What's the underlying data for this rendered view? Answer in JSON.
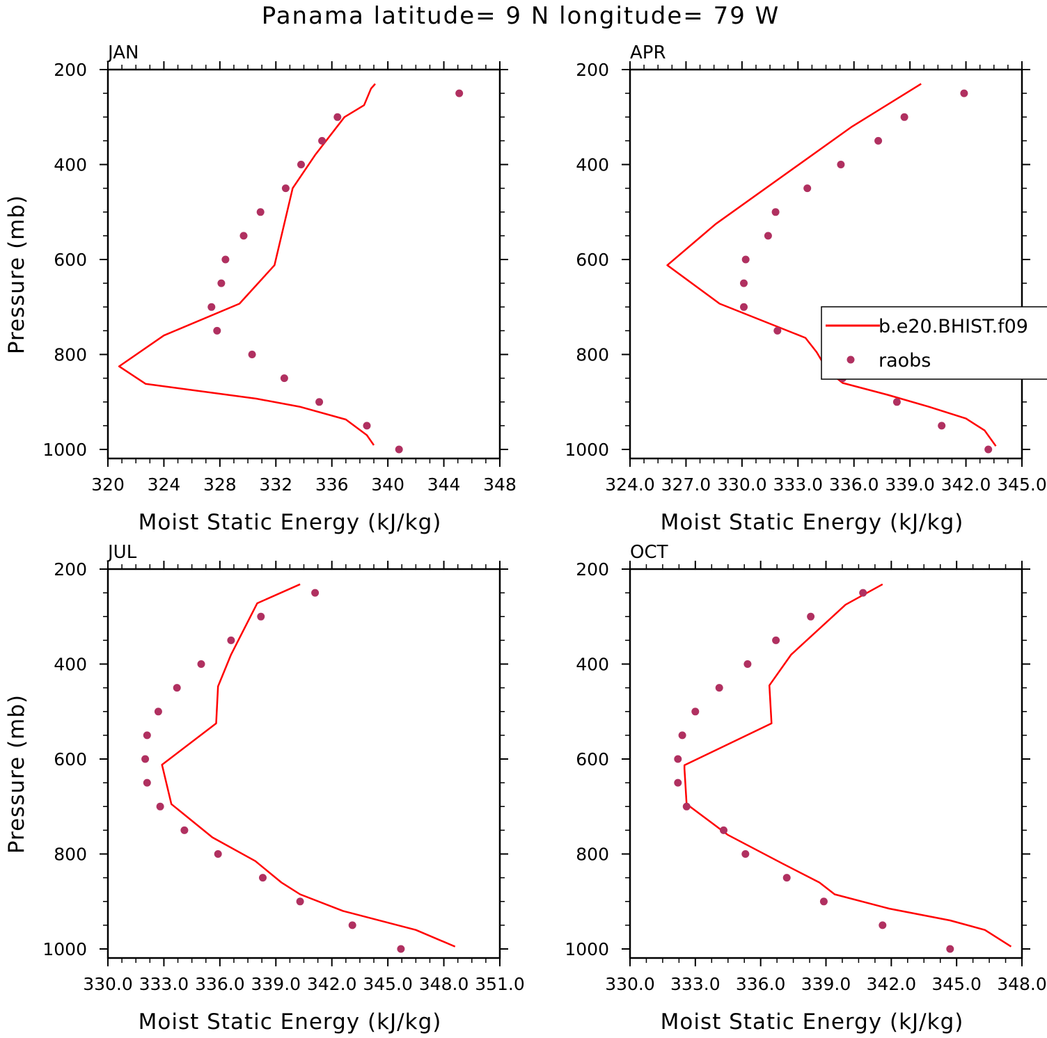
{
  "title": "Panama  latitude= 9 N longitude= 79 W",
  "colors": {
    "model_line": "#ff0000",
    "obs_marker": "#b03060"
  },
  "legend": {
    "model_label": "b.e20.BHIST.f09",
    "obs_label": "raobs"
  },
  "chart_data": [
    {
      "type": "line",
      "panel": "JAN",
      "xlabel": "Moist Static Energy (kJ/kg)",
      "ylabel": "Pressure (mb)",
      "xlim": [
        320,
        348
      ],
      "ylim": [
        1000,
        200
      ],
      "xtick_labels": [
        "320",
        "324",
        "328",
        "332",
        "336",
        "340",
        "344",
        "348"
      ],
      "ytick_labels": [
        "200",
        "400",
        "600",
        "800",
        "1000"
      ],
      "series": [
        {
          "name": "b.e20.BHIST.f09",
          "kind": "line",
          "x": [
            339.0,
            338.5,
            337.0,
            333.7,
            330.6,
            322.7,
            320.8,
            324.0,
            329.4,
            331.9,
            333.2,
            334.8,
            336.9,
            338.3,
            338.8,
            339.1
          ],
          "y": [
            991,
            970,
            937,
            910,
            893,
            862,
            825,
            760,
            693,
            612,
            450,
            380,
            300,
            275,
            240,
            230
          ]
        },
        {
          "name": "raobs",
          "kind": "scatter",
          "x": [
            340.8,
            338.5,
            335.1,
            332.6,
            330.3,
            327.8,
            327.4,
            328.1,
            328.4,
            329.7,
            330.9,
            332.7,
            333.8,
            335.3,
            336.4,
            345.1
          ],
          "y": [
            1000,
            950,
            900,
            850,
            800,
            750,
            700,
            650,
            600,
            550,
            500,
            450,
            400,
            350,
            300,
            250
          ]
        }
      ]
    },
    {
      "type": "line",
      "panel": "APR",
      "xlabel": "Moist Static Energy (kJ/kg)",
      "ylabel": "",
      "xlim": [
        324,
        345
      ],
      "ylim": [
        1000,
        200
      ],
      "xtick_labels": [
        "324.0",
        "327.0",
        "330.0",
        "333.0",
        "336.0",
        "339.0",
        "342.0",
        "345.0"
      ],
      "ytick_labels": [
        "200",
        "400",
        "600",
        "800",
        "1000"
      ],
      "series": [
        {
          "name": "b.e20.BHIST.f09",
          "kind": "line",
          "x": [
            343.6,
            343.0,
            342.0,
            340.0,
            337.8,
            335.4,
            334.6,
            334.0,
            333.4,
            328.8,
            326.0,
            328.6,
            335.9,
            339.6
          ],
          "y": [
            993,
            960,
            935,
            910,
            885,
            860,
            835,
            795,
            765,
            693,
            612,
            525,
            320,
            230
          ]
        },
        {
          "name": "raobs",
          "kind": "scatter",
          "x": [
            343.2,
            340.7,
            338.3,
            335.4,
            334.7,
            331.9,
            330.1,
            330.1,
            330.2,
            331.4,
            331.8,
            333.5,
            335.3,
            337.3,
            338.7,
            341.9
          ],
          "y": [
            1000,
            950,
            900,
            850,
            800,
            750,
            700,
            650,
            600,
            550,
            500,
            450,
            400,
            350,
            300,
            250
          ]
        }
      ]
    },
    {
      "type": "line",
      "panel": "JUL",
      "xlabel": "Moist Static Energy (kJ/kg)",
      "ylabel": "Pressure (mb)",
      "xlim": [
        330,
        351
      ],
      "ylim": [
        1000,
        200
      ],
      "xtick_labels": [
        "330.0",
        "333.0",
        "336.0",
        "339.0",
        "342.0",
        "345.0",
        "348.0",
        "351.0"
      ],
      "ytick_labels": [
        "200",
        "400",
        "600",
        "800",
        "1000"
      ],
      "series": [
        {
          "name": "b.e20.BHIST.f09",
          "kind": "line",
          "x": [
            348.6,
            346.5,
            342.6,
            340.3,
            339.3,
            337.9,
            335.6,
            333.4,
            332.9,
            335.8,
            335.9,
            336.6,
            338.0,
            340.3
          ],
          "y": [
            995,
            960,
            920,
            885,
            860,
            815,
            765,
            695,
            612,
            525,
            447,
            380,
            272,
            232
          ]
        },
        {
          "name": "raobs",
          "kind": "scatter",
          "x": [
            345.7,
            343.1,
            340.3,
            338.3,
            335.9,
            334.1,
            332.8,
            332.1,
            332.0,
            332.1,
            332.7,
            333.7,
            335.0,
            336.6,
            338.2,
            341.1
          ],
          "y": [
            1000,
            950,
            900,
            850,
            800,
            750,
            700,
            650,
            600,
            550,
            500,
            450,
            400,
            350,
            300,
            250
          ]
        }
      ]
    },
    {
      "type": "line",
      "panel": "OCT",
      "xlabel": "Moist Static Energy (kJ/kg)",
      "ylabel": "",
      "xlim": [
        330,
        348
      ],
      "ylim": [
        1000,
        200
      ],
      "xtick_labels": [
        "330.0",
        "333.0",
        "336.0",
        "339.0",
        "342.0",
        "345.0",
        "348.0"
      ],
      "ytick_labels": [
        "200",
        "400",
        "600",
        "800",
        "1000"
      ],
      "series": [
        {
          "name": "b.e20.BHIST.f09",
          "kind": "line",
          "x": [
            347.5,
            346.3,
            344.7,
            341.9,
            339.4,
            338.7,
            337.0,
            334.5,
            332.6,
            332.5,
            332.5,
            336.5,
            336.4,
            337.4,
            339.9,
            341.6
          ],
          "y": [
            995,
            960,
            940,
            915,
            885,
            860,
            820,
            760,
            695,
            620,
            613,
            525,
            445,
            380,
            275,
            232
          ]
        },
        {
          "name": "raobs",
          "kind": "scatter",
          "x": [
            344.7,
            341.6,
            338.9,
            337.2,
            335.3,
            334.3,
            332.6,
            332.2,
            332.2,
            332.4,
            333.0,
            334.1,
            335.4,
            336.7,
            338.3,
            340.7
          ],
          "y": [
            1000,
            950,
            900,
            850,
            800,
            750,
            700,
            650,
            600,
            550,
            500,
            450,
            400,
            350,
            300,
            250
          ]
        }
      ]
    }
  ]
}
